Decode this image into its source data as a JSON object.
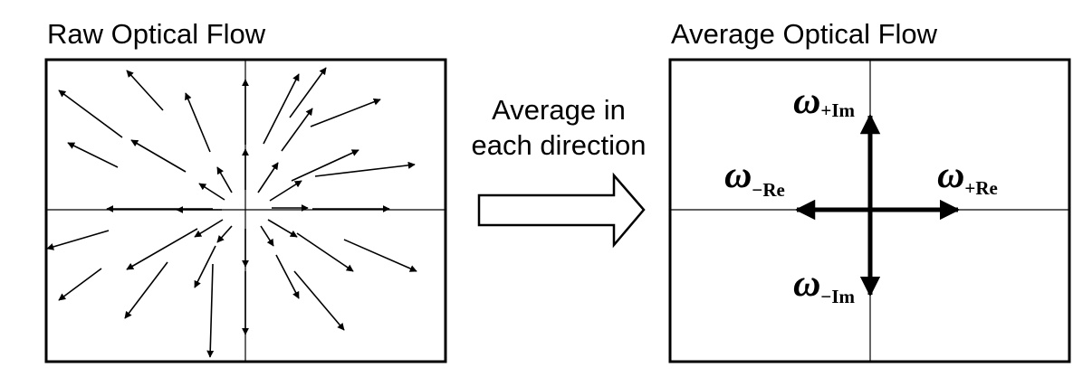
{
  "left_panel": {
    "title": "Raw Optical Flow"
  },
  "middle": {
    "line1": "Average in",
    "line2": "each direction"
  },
  "right_panel": {
    "title": "Average Optical Flow",
    "labels": {
      "plus_im": {
        "symbol": "ω",
        "sub": "+Im"
      },
      "minus_re": {
        "symbol": "ω",
        "sub": "−Re"
      },
      "plus_re": {
        "symbol": "ω",
        "sub": "+Re"
      },
      "minus_im": {
        "symbol": "ω",
        "sub": "−Im"
      }
    }
  },
  "colors": {
    "stroke": "#000000",
    "background": "#ffffff"
  }
}
